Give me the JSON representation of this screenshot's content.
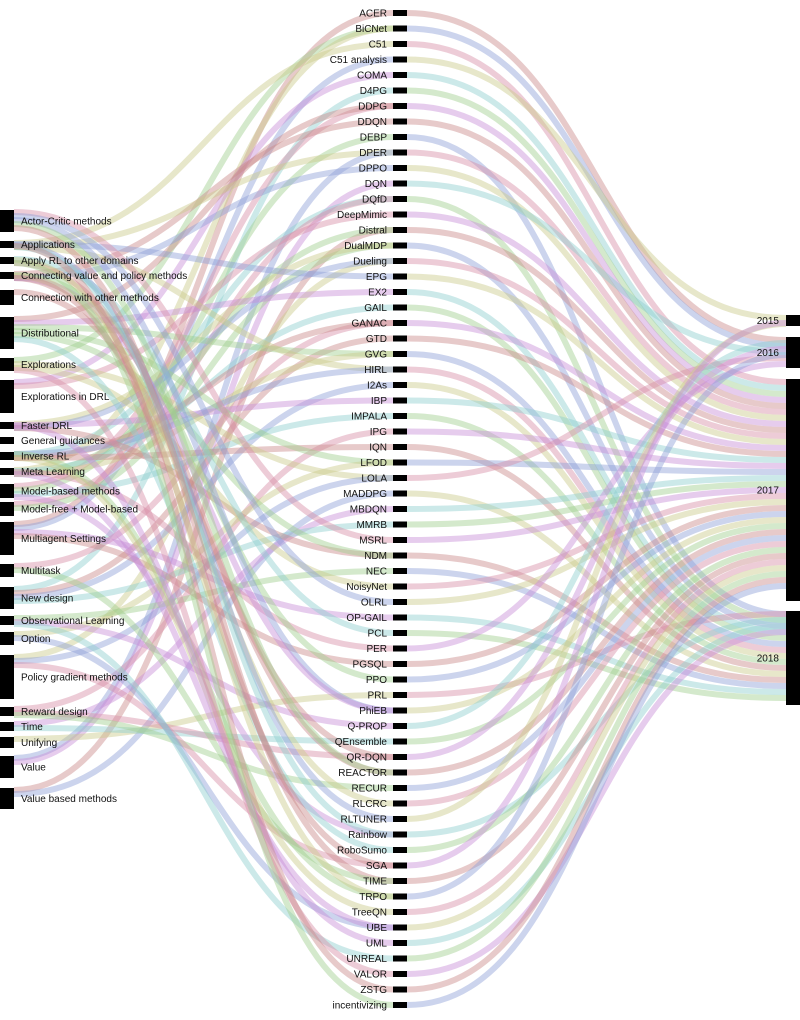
{
  "topics": [
    "Actor-Critic methods",
    "Applications",
    "Apply RL to other domains",
    "Connecting value and policy methods",
    "Connection with other methods",
    "Distributional",
    "Explorations",
    "Explorations in DRL",
    "Faster DRL",
    "General guidances",
    "Inverse RL",
    "Meta Learning",
    "Model-based methods",
    "Model-free + Model-based",
    "Multiagent Settings",
    "Multitask",
    "New design",
    "Observational Learning",
    "Option",
    "Policy gradient methods",
    "Reward design",
    "Time",
    "Unifying",
    "Value",
    "Value based methods"
  ],
  "methods": [
    "ACER",
    "BiCNet",
    "C51",
    "C51 analysis",
    "COMA",
    "D4PG",
    "DDPG",
    "DDQN",
    "DEBP",
    "DPER",
    "DPPO",
    "DQN",
    "DQfD",
    "DeepMimic",
    "Distral",
    "DualMDP",
    "Dueling",
    "EPG",
    "EX2",
    "GAIL",
    "GANAC",
    "GTD",
    "GVG",
    "HIRL",
    "I2As",
    "IBP",
    "IMPALA",
    "IPG",
    "IQN",
    "LFOD",
    "LOLA",
    "MADDPG",
    "MBDQN",
    "MMRB",
    "MSRL",
    "NDM",
    "NEC",
    "NoisyNet",
    "OLRL",
    "OP-GAIL",
    "PCL",
    "PER",
    "PGSQL",
    "PPO",
    "PRL",
    "PhiEB",
    "Q-PROP",
    "QEnsemble",
    "QR-DQN",
    "REACTOR",
    "RECUR",
    "RLCRC",
    "RLTUNER",
    "Rainbow",
    "RoboSumo",
    "SGA",
    "TIME",
    "TRPO",
    "TreeQN",
    "UBE",
    "UML",
    "UNREAL",
    "VALOR",
    "ZSTG",
    "incentivizing"
  ],
  "years": [
    "2015",
    "2016",
    "2017",
    "2018"
  ],
  "link_colors": [
    "#c98a8a",
    "#9fcf8f",
    "#c9c98a",
    "#8f9fd6",
    "#c78fd6",
    "#8fcfcf",
    "#d68fa6"
  ]
}
